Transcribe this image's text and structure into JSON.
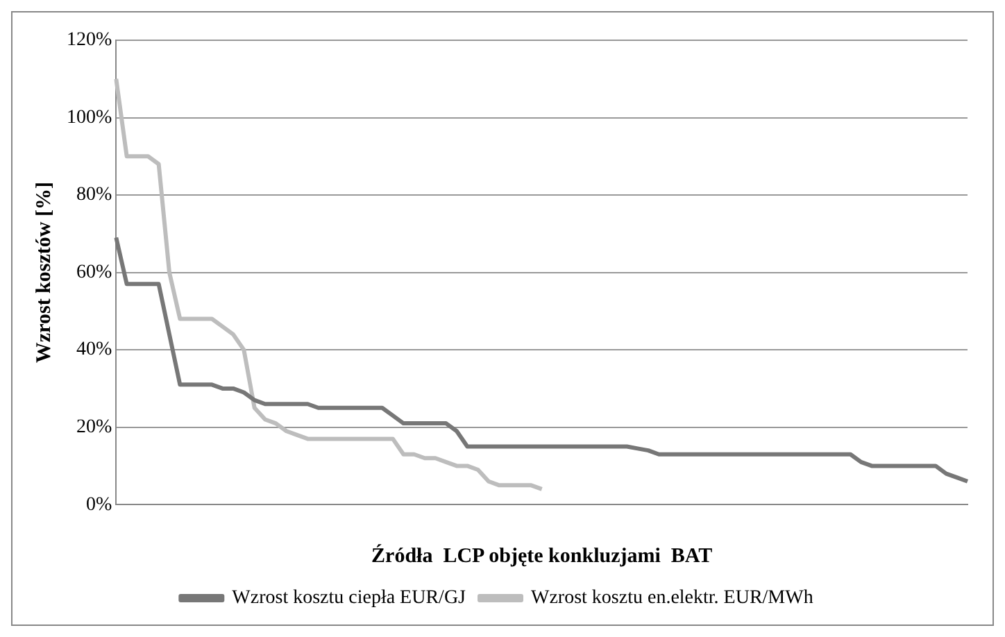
{
  "chart_data": {
    "type": "line",
    "xlabel": "Źródła  LCP objęte konkluzjami  BAT",
    "ylabel": "Wzrost kosztów [%]",
    "categories": [
      null,
      null,
      null,
      null,
      null,
      null,
      null,
      null,
      null,
      null,
      null,
      null,
      null,
      null,
      null,
      null,
      null,
      null,
      null,
      null,
      null,
      null,
      null,
      null,
      null,
      null,
      null,
      null,
      null,
      null,
      null,
      null,
      null,
      null,
      null,
      null,
      null,
      null,
      null,
      null,
      null,
      null,
      null,
      null,
      null,
      null,
      null,
      null,
      null,
      null,
      null,
      null,
      null,
      null,
      null,
      null,
      null,
      null,
      null,
      null,
      null,
      null,
      null,
      null,
      null,
      null,
      null,
      null,
      null,
      null,
      null,
      null,
      null,
      null,
      null,
      null,
      null,
      null,
      null,
      null,
      null
    ],
    "series": [
      {
        "name": "Wzrost kosztu ciepła EUR/GJ",
        "color": "#777777",
        "values": [
          69,
          57,
          57,
          57,
          57,
          44,
          31,
          31,
          31,
          31,
          30,
          30,
          29,
          27,
          26,
          26,
          26,
          26,
          26,
          25,
          25,
          25,
          25,
          25,
          25,
          25,
          23,
          21,
          21,
          21,
          21,
          21,
          19,
          15,
          15,
          15,
          15,
          15,
          15,
          15,
          15,
          15,
          15,
          15,
          15,
          15,
          15,
          15,
          15,
          14.5,
          14,
          13,
          13,
          13,
          13,
          13,
          13,
          13,
          13,
          13,
          13,
          13,
          13,
          13,
          13,
          13,
          13,
          13,
          13,
          13,
          11,
          10,
          10,
          10,
          10,
          10,
          10,
          10,
          8,
          7,
          6
        ]
      },
      {
        "name": "Wzrost kosztu en.elektr. EUR/MWh",
        "color": "#bdbdbd",
        "values": [
          110,
          90,
          90,
          90,
          88,
          60,
          48,
          48,
          48,
          48,
          46,
          44,
          40,
          25,
          22,
          21,
          19,
          18,
          17,
          17,
          17,
          17,
          17,
          17,
          17,
          17,
          17,
          13,
          13,
          12,
          12,
          11,
          10,
          10,
          9,
          6,
          5,
          5,
          5,
          5,
          4,
          null,
          null,
          null,
          null,
          null,
          null,
          null,
          null,
          null,
          null,
          null,
          null,
          null,
          null,
          null,
          null,
          null,
          null,
          null,
          null,
          null,
          null,
          null,
          null,
          null,
          null,
          null,
          null,
          null,
          null,
          null,
          null,
          null,
          null,
          null,
          null,
          null,
          null,
          null,
          null
        ]
      }
    ],
    "ylim": [
      0,
      120
    ],
    "yticks": [
      {
        "value": 0,
        "label": "0%"
      },
      {
        "value": 20,
        "label": "20%"
      },
      {
        "value": 40,
        "label": "40%"
      },
      {
        "value": 60,
        "label": "60%"
      },
      {
        "value": 80,
        "label": "80%"
      },
      {
        "value": 100,
        "label": "100%"
      },
      {
        "value": 120,
        "label": "120%"
      }
    ],
    "grid": "y",
    "legend": "bottom",
    "marker": "none",
    "line_style": "solid"
  }
}
